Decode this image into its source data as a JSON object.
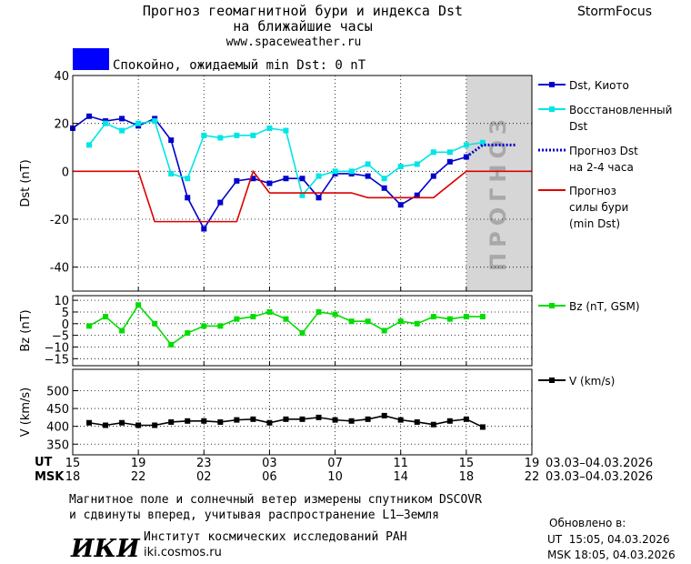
{
  "header": {
    "title_line1": "Прогноз геомагнитной бури и индекса Dst",
    "title_line2": "на ближайшие часы",
    "site": "www.spaceweather.ru",
    "brand": "StormFocus"
  },
  "status": {
    "color": "#0000ff",
    "text": "Спокойно, ожидаемый min Dst: 0 nT"
  },
  "forecast_label": "ПРОГНОЗ",
  "chart_data": [
    {
      "id": "dst",
      "type": "line",
      "ylabel": "Dst (nT)",
      "ylim": [
        -50,
        40
      ],
      "yticks": [
        40,
        20,
        0,
        -20,
        -40
      ],
      "xlim": [
        15,
        43
      ],
      "forecast_region": [
        39,
        43
      ],
      "series": [
        {
          "name": "Dst, Киото",
          "color": "#0000cc",
          "marker": "square",
          "x": [
            15,
            16,
            17,
            18,
            19,
            20,
            21,
            22,
            23,
            24,
            25,
            26,
            27,
            28,
            29,
            30,
            31,
            32,
            33,
            34,
            35,
            36,
            37,
            38,
            39
          ],
          "y": [
            18,
            23,
            21,
            22,
            19,
            22,
            13,
            -11,
            -24,
            -13,
            -4,
            -3,
            -5,
            -3,
            -3,
            -11,
            -1,
            -1,
            -2,
            -7,
            -14,
            -10,
            -2,
            4,
            6
          ]
        },
        {
          "name": "Восстановленный Dst",
          "color": "#00e5e5",
          "marker": "square",
          "x": [
            16,
            17,
            18,
            19,
            20,
            21,
            22,
            23,
            24,
            25,
            26,
            27,
            28,
            29,
            30,
            31,
            32,
            33,
            34,
            35,
            36,
            37,
            38,
            39,
            40
          ],
          "y": [
            11,
            20,
            17,
            20,
            21,
            -1,
            -3,
            15,
            14,
            15,
            15,
            18,
            17,
            -10,
            -2,
            0,
            0,
            3,
            -3,
            2,
            3,
            8,
            8,
            11,
            12
          ]
        },
        {
          "name": "Прогноз Dst на 2-4 часа",
          "color": "#0000cc",
          "dashed": true,
          "x": [
            39,
            40,
            41,
            42
          ],
          "y": [
            6,
            11,
            11,
            11
          ]
        },
        {
          "name": "Прогноз силы бури (min Dst)",
          "color": "#dd0000",
          "x": [
            15,
            19,
            20,
            25,
            26,
            27,
            28,
            30,
            32,
            33,
            36,
            37,
            39,
            43
          ],
          "y": [
            0,
            0,
            -21,
            -21,
            0,
            -9,
            -9,
            -9,
            -9,
            -11,
            -11,
            -11,
            0,
            0
          ]
        }
      ]
    },
    {
      "id": "bz",
      "type": "line",
      "ylabel": "Bz (nT)",
      "ylim": [
        -18,
        12
      ],
      "yticks": [
        10,
        5,
        0,
        -5,
        -10,
        -15
      ],
      "ytick_labels": [
        "10",
        "5",
        "0",
        "−5",
        "−10",
        "−15"
      ],
      "xlim": [
        15,
        43
      ],
      "series": [
        {
          "name": "Bz (nT, GSM)",
          "color": "#00dd00",
          "marker": "square",
          "x": [
            16,
            17,
            18,
            19,
            20,
            21,
            22,
            23,
            24,
            25,
            26,
            27,
            28,
            29,
            30,
            31,
            32,
            33,
            34,
            35,
            36,
            37,
            38,
            39,
            40
          ],
          "y": [
            -1,
            3,
            -3,
            8,
            0,
            -9,
            -4,
            -1,
            -1,
            2,
            3,
            5,
            2,
            -4,
            5,
            4,
            1,
            1,
            -3,
            1,
            0,
            3,
            2,
            3,
            3
          ]
        }
      ]
    },
    {
      "id": "v",
      "type": "line",
      "ylabel": "V (km/s)",
      "ylim": [
        320,
        560
      ],
      "yticks": [
        500,
        450,
        400,
        350
      ],
      "xlim": [
        15,
        43
      ],
      "series": [
        {
          "name": "V (km/s)",
          "color": "#000000",
          "marker": "square",
          "x": [
            16,
            17,
            18,
            19,
            20,
            21,
            22,
            23,
            24,
            25,
            26,
            27,
            28,
            29,
            30,
            31,
            32,
            33,
            34,
            35,
            36,
            37,
            38,
            39,
            40
          ],
          "y": [
            410,
            403,
            410,
            403,
            403,
            412,
            415,
            415,
            412,
            418,
            420,
            410,
            420,
            420,
            425,
            418,
            415,
            420,
            430,
            418,
            412,
            405,
            415,
            420,
            398
          ]
        }
      ]
    }
  ],
  "time_axis": {
    "ut_label": "UT",
    "msk_label": "MSK",
    "tick_positions": [
      15,
      19,
      23,
      27,
      31,
      35,
      39,
      43
    ],
    "ut_ticks": [
      "15",
      "19",
      "23",
      "03",
      "07",
      "11",
      "15",
      "19"
    ],
    "msk_ticks": [
      "18",
      "22",
      "02",
      "06",
      "10",
      "14",
      "18",
      "22"
    ],
    "ut_range": "03.03–04.03.2026",
    "msk_range": "03.03–04.03.2026"
  },
  "footer": {
    "note_line1": "Магнитное поле и солнечный ветер измерены спутником DSCOVR",
    "note_line2": "и сдвинуты вперед, учитывая распространение L1–Земля",
    "logo": "ИКИ",
    "institute": "Институт космических исследований РАН",
    "institute_site": "iki.cosmos.ru",
    "updated_label": "Обновлено в:",
    "updated_ut": "UT  15:05, 04.03.2026",
    "updated_msk": "MSK 18:05, 04.03.2026"
  }
}
